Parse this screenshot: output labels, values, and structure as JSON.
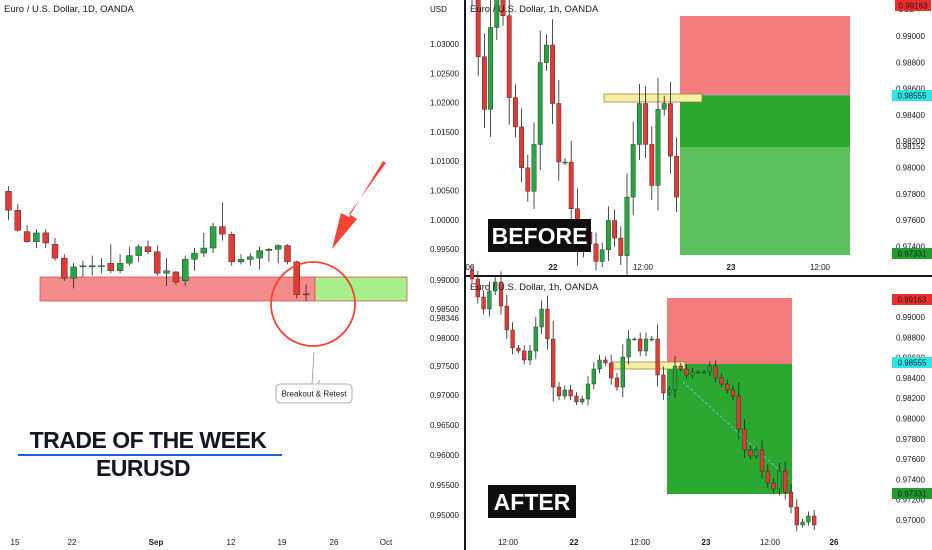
{
  "colors": {
    "up": "#26a641",
    "down": "#e53935",
    "sl_fill": "#f47c7c",
    "tp_fill": "#5cc05c",
    "tp_fill_dark": "#2ba82f",
    "arrow": "#f44336",
    "support_zone": "#f58c8c",
    "breakout_zone": "#a8ee8a",
    "retest_box": "#f7efa2",
    "divider": "#131722"
  },
  "left": {
    "title": "Euro / U.S. Dollar, 1D, OANDA",
    "x_ticks": [
      "15",
      "22",
      "Sep",
      "12",
      "19",
      "26",
      "Oct"
    ],
    "headline_1": "TRADE OF THE WEEK",
    "headline_2": "EURUSD",
    "callout": "Breakout & Retest",
    "arrow_icon": "arrow-down-left-icon"
  },
  "before": {
    "title": "Euro / U.S. Dollar, 1h, OANDA",
    "currency": "USD",
    "label": "BEFORE",
    "left_axis": [
      "1.03000",
      "1.02500",
      "1.02000",
      "1.01500",
      "1.01000",
      "1.00500",
      "1.00000",
      "0.99500"
    ],
    "right_axis": [
      "0.99000",
      "0.98800",
      "0.98600",
      "0.98400",
      "0.98200",
      "0.98000",
      "0.97800",
      "0.97600",
      "0.97400"
    ],
    "badges": {
      "stop": "0.99163",
      "entry": "0.98555",
      "mid": "0.98152",
      "target": "0.97331"
    },
    "x_ticks": [
      "00",
      "22",
      "12:00",
      "23",
      "12:00"
    ]
  },
  "after": {
    "title": "Euro / U.S. Dollar, 1h, OANDA",
    "label": "AFTER",
    "left_axis": [
      "0.99000",
      "0.98500",
      "0.98346",
      "0.98000",
      "0.97500",
      "0.97000",
      "0.96500",
      "0.96000",
      "0.95500",
      "0.95000"
    ],
    "right_axis": [
      "0.99000",
      "0.98800",
      "0.98600",
      "0.98400",
      "0.98200",
      "0.98000",
      "0.97800",
      "0.97600",
      "0.97400",
      "0.97200",
      "0.97000"
    ],
    "badges": {
      "stop": "0.99163",
      "entry": "0.98555",
      "target": "0.97331"
    },
    "x_ticks": [
      "12:00",
      "22",
      "12:00",
      "23",
      "12:00",
      "26"
    ]
  },
  "chart_data": [
    {
      "type": "candlestick",
      "title": "Euro / U.S. Dollar, 1D, OANDA",
      "note": "Daily candles, mid-August to late September; approximate OHLC read from pixel positions on the 1D panel",
      "candles": [
        {
          "o": 1.0245,
          "h": 1.0265,
          "l": 1.013,
          "c": 1.017
        },
        {
          "o": 1.017,
          "h": 1.0195,
          "l": 1.0085,
          "c": 1.009
        },
        {
          "o": 1.0085,
          "h": 1.011,
          "l": 1.004,
          "c": 1.0045
        },
        {
          "o": 1.0045,
          "h": 1.0095,
          "l": 1.002,
          "c": 1.008
        },
        {
          "o": 1.008,
          "h": 1.0095,
          "l": 1.002,
          "c": 1.004
        },
        {
          "o": 1.0035,
          "h": 1.006,
          "l": 0.997,
          "c": 0.998
        },
        {
          "o": 0.998,
          "h": 0.9995,
          "l": 0.989,
          "c": 0.99
        },
        {
          "o": 0.99,
          "h": 0.996,
          "l": 0.986,
          "c": 0.9945
        },
        {
          "o": 0.9945,
          "h": 0.997,
          "l": 0.9905,
          "c": 0.995
        },
        {
          "o": 0.9945,
          "h": 0.999,
          "l": 0.991,
          "c": 0.995
        },
        {
          "o": 0.995,
          "h": 0.998,
          "l": 0.992,
          "c": 0.995
        },
        {
          "o": 0.996,
          "h": 1.0035,
          "l": 0.992,
          "c": 0.993
        },
        {
          "o": 0.993,
          "h": 0.9995,
          "l": 0.992,
          "c": 0.996
        },
        {
          "o": 0.996,
          "h": 1.0025,
          "l": 0.995,
          "c": 0.999
        },
        {
          "o": 0.999,
          "h": 1.0035,
          "l": 0.9965,
          "c": 1.0025
        },
        {
          "o": 1.0025,
          "h": 1.005,
          "l": 0.9995,
          "c": 1.0005
        },
        {
          "o": 1.0005,
          "h": 1.003,
          "l": 0.991,
          "c": 0.992
        },
        {
          "o": 0.992,
          "h": 0.998,
          "l": 0.987,
          "c": 0.993
        },
        {
          "o": 0.9925,
          "h": 0.993,
          "l": 0.9875,
          "c": 0.9885
        },
        {
          "o": 0.989,
          "h": 0.999,
          "l": 0.987,
          "c": 0.9975
        },
        {
          "o": 0.9975,
          "h": 1.002,
          "l": 0.993,
          "c": 1.0
        },
        {
          "o": 1.0,
          "h": 1.008,
          "l": 0.9985,
          "c": 1.002
        },
        {
          "o": 1.002,
          "h": 1.012,
          "l": 1.0,
          "c": 1.0105
        },
        {
          "o": 1.0105,
          "h": 1.02,
          "l": 1.005,
          "c": 1.0075
        },
        {
          "o": 1.0075,
          "h": 1.0085,
          "l": 0.995,
          "c": 0.9965
        },
        {
          "o": 0.9965,
          "h": 0.9995,
          "l": 0.9955,
          "c": 0.9975
        },
        {
          "o": 0.9975,
          "h": 1.0,
          "l": 0.995,
          "c": 0.9985
        },
        {
          "o": 0.998,
          "h": 1.0025,
          "l": 0.9935,
          "c": 1.001
        },
        {
          "o": 1.001,
          "h": 1.002,
          "l": 0.9965,
          "c": 1.0015
        },
        {
          "o": 1.0015,
          "h": 1.0035,
          "l": 0.996,
          "c": 1.003
        },
        {
          "o": 1.003,
          "h": 1.0035,
          "l": 0.9955,
          "c": 0.9965
        },
        {
          "o": 0.9965,
          "h": 0.997,
          "l": 0.982,
          "c": 0.9835
        },
        {
          "o": 0.9838,
          "h": 0.9875,
          "l": 0.981,
          "c": 0.9835
        }
      ],
      "support_zone": [
        0.9865,
        0.9905
      ]
    },
    {
      "type": "candlestick",
      "title": "Euro / U.S. Dollar, 1h, OANDA",
      "panel": "BEFORE",
      "note": "Hourly candles on 21-22 Sep before the trade; approximate values",
      "closes": [
        1.034,
        1.029,
        1.0245,
        1.0315,
        1.0345,
        1.0325,
        1.0255,
        1.023,
        1.0195,
        1.0175,
        1.0215,
        1.0285,
        1.03,
        1.025,
        1.02,
        1.02,
        1.016,
        1.0125,
        1.014,
        1.013,
        1.0115,
        1.0125,
        1.015,
        1.0135,
        1.012,
        1.017,
        1.0215,
        1.025,
        1.0215,
        1.018,
        1.0245,
        1.025,
        1.0205,
        1.017
      ],
      "position": {
        "stop": 0.99163,
        "entry": 0.98555,
        "target": 0.97331
      }
    },
    {
      "type": "candlestick",
      "title": "Euro / U.S. Dollar, 1h, OANDA",
      "panel": "AFTER",
      "note": "Hourly candles after the trade, target reached; approximate values",
      "closes": [
        0.991,
        0.988,
        0.986,
        0.989,
        0.9905,
        0.9865,
        0.9825,
        0.9795,
        0.979,
        0.9775,
        0.979,
        0.983,
        0.986,
        0.981,
        0.973,
        0.9715,
        0.9725,
        0.9715,
        0.9705,
        0.971,
        0.9735,
        0.976,
        0.9775,
        0.977,
        0.9745,
        0.973,
        0.978,
        0.981,
        0.981,
        0.979,
        0.981,
        0.981,
        0.975,
        0.972,
        0.9725,
        0.9765,
        0.976,
        0.975,
        0.9755,
        0.9755,
        0.9755,
        0.9765,
        0.9745,
        0.9735,
        0.9725,
        0.9715,
        0.966,
        0.9625,
        0.9615,
        0.9625,
        0.959,
        0.957,
        0.956,
        0.959,
        0.9555,
        0.953,
        0.95,
        0.9505,
        0.9515,
        0.95
      ],
      "position": {
        "stop": 0.99163,
        "entry": 0.98555,
        "target": 0.97331
      }
    }
  ]
}
